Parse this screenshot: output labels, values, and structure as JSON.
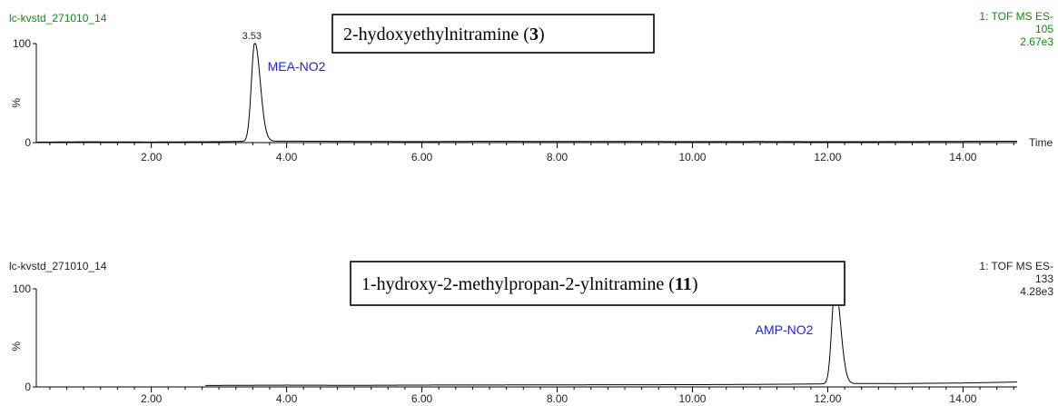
{
  "chart_data": [
    {
      "type": "line",
      "sample": "lc-kvstd_271010_14",
      "function": "1: TOF MS ES-",
      "channel": "105",
      "intensity": "2.67e3",
      "y_axis_label": "%",
      "y_ticks": [
        "0",
        "100"
      ],
      "x_axis_label": "Time",
      "x_ticks": [
        "2.00",
        "4.00",
        "6.00",
        "8.00",
        "10.00",
        "12.00",
        "14.00"
      ],
      "xlim": [
        0.3,
        14.8
      ],
      "ylim": [
        0,
        100
      ],
      "trace_start": 0.3,
      "peak": {
        "rt": 3.53,
        "rt_label": "3.53",
        "name": "MEA-NO2",
        "width": 0.05
      },
      "callout": {
        "text": "2-hydoxyethylnitramine (",
        "bold": "3",
        "close": ")"
      },
      "baseline": [
        [
          0.3,
          0.5
        ],
        [
          1.0,
          0.8
        ],
        [
          2.0,
          0.6
        ],
        [
          3.0,
          0.9
        ],
        [
          3.3,
          1.2
        ],
        [
          4.0,
          1.5
        ],
        [
          5.0,
          1.2
        ],
        [
          6.0,
          1.0
        ],
        [
          7.0,
          1.3
        ],
        [
          8.0,
          1.1
        ],
        [
          9.0,
          1.2
        ],
        [
          10.0,
          1.0
        ],
        [
          11.0,
          1.1
        ],
        [
          12.0,
          0.9
        ],
        [
          13.0,
          1.0
        ],
        [
          14.0,
          1.2
        ],
        [
          14.8,
          1.4
        ]
      ]
    },
    {
      "type": "line",
      "sample": "lc-kvstd_271010_14",
      "function": "1: TOF MS ES-",
      "channel": "133",
      "intensity": "4.28e3",
      "y_axis_label": "%",
      "y_ticks": [
        "0",
        "100"
      ],
      "x_axis_label": "",
      "x_ticks": [
        "2.00",
        "4.00",
        "6.00",
        "8.00",
        "10.00",
        "12.00",
        "14.00"
      ],
      "xlim": [
        0.3,
        14.8
      ],
      "ylim": [
        0,
        100
      ],
      "trace_start": 2.8,
      "peak": {
        "rt": 12.11,
        "rt_label": "11",
        "name": "AMP-NO2",
        "width": 0.05
      },
      "callout": {
        "text": "1-hydroxy-2-methylpropan-2-ylnitramine (",
        "bold": "11",
        "close": ")"
      },
      "baseline": [
        [
          2.8,
          1.5
        ],
        [
          4.0,
          1.8
        ],
        [
          5.0,
          1.6
        ],
        [
          6.0,
          1.9
        ],
        [
          7.0,
          2.0
        ],
        [
          8.0,
          2.1
        ],
        [
          9.0,
          2.2
        ],
        [
          10.0,
          2.3
        ],
        [
          11.0,
          2.6
        ],
        [
          11.8,
          3.0
        ],
        [
          12.6,
          3.5
        ],
        [
          13.0,
          3.4
        ],
        [
          14.0,
          4.0
        ],
        [
          14.8,
          5.0
        ]
      ]
    }
  ]
}
